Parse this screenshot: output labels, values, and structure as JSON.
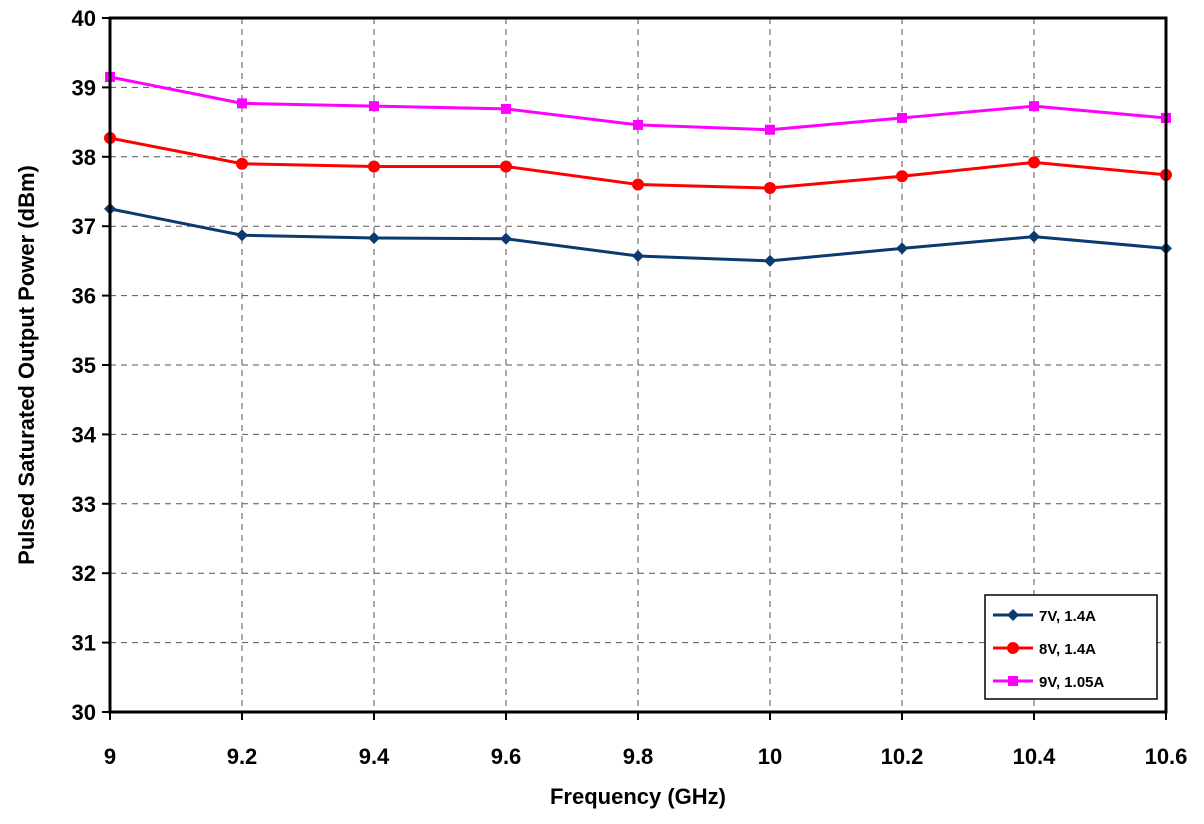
{
  "chart_data": {
    "type": "line",
    "title": "",
    "xlabel": "Frequency (GHz)",
    "ylabel": "Pulsed Saturated Output Power (dBm)",
    "x": [
      9,
      9.2,
      9.4,
      9.6,
      9.8,
      10,
      10.2,
      10.4,
      10.6
    ],
    "x_tick_labels": [
      "9",
      "9.2",
      "9.4",
      "9.6",
      "9.8",
      "10",
      "10.2",
      "10.4",
      "10.6"
    ],
    "xlim": [
      9,
      10.6
    ],
    "ylim": [
      30,
      40
    ],
    "y_ticks": [
      30,
      31,
      32,
      33,
      34,
      35,
      36,
      37,
      38,
      39,
      40
    ],
    "y_tick_labels": [
      "30",
      "31",
      "32",
      "33",
      "34",
      "35",
      "36",
      "37",
      "38",
      "39",
      "40"
    ],
    "grid": true,
    "legend_position": "bottom-right",
    "series": [
      {
        "name": "7V, 1.4A",
        "color": "#0b3a6e",
        "marker": "diamond",
        "values": [
          37.25,
          36.87,
          36.83,
          36.82,
          36.57,
          36.5,
          36.68,
          36.85,
          36.68
        ]
      },
      {
        "name": "8V, 1.4A",
        "color": "#ff0000",
        "marker": "circle",
        "values": [
          38.27,
          37.9,
          37.86,
          37.86,
          37.6,
          37.55,
          37.72,
          37.92,
          37.74
        ]
      },
      {
        "name": "9V, 1.05A",
        "color": "#ff00ff",
        "marker": "square",
        "values": [
          39.15,
          38.77,
          38.73,
          38.69,
          38.46,
          38.39,
          38.56,
          38.73,
          38.56
        ]
      }
    ]
  }
}
